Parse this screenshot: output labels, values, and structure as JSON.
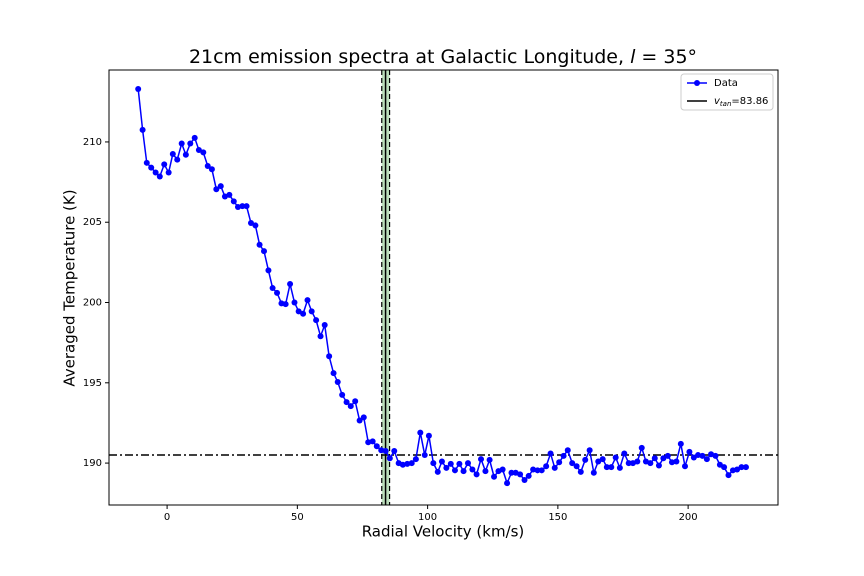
{
  "chart_data": {
    "type": "line",
    "title_prefix": "21cm emission spectra at Galactic Longitude, ",
    "title_symbol": "l",
    "title_suffix": " = 35°",
    "xlabel": "Radial Velocity (km/s)",
    "ylabel": "Averaged Temperature (K)",
    "xlim": [
      -22.3,
      234.5
    ],
    "ylim": [
      187.39,
      214.48
    ],
    "xticks": [
      0,
      50,
      100,
      150,
      200
    ],
    "yticks": [
      190,
      195,
      200,
      205,
      210
    ],
    "legend": "upper right",
    "x": [
      -11.1,
      -9.4,
      -7.8,
      -6.1,
      -4.4,
      -2.8,
      -1.1,
      0.6,
      2.2,
      3.9,
      5.6,
      7.2,
      8.9,
      10.6,
      12.2,
      13.9,
      15.6,
      17.2,
      18.9,
      20.6,
      22.2,
      23.9,
      25.6,
      27.2,
      28.9,
      30.5,
      32.2,
      33.9,
      35.5,
      37.2,
      38.9,
      40.5,
      42.2,
      43.9,
      45.5,
      47.2,
      48.9,
      50.5,
      52.2,
      53.9,
      55.5,
      57.2,
      58.9,
      60.5,
      62.2,
      63.9,
      65.5,
      67.2,
      68.9,
      70.5,
      72.2,
      73.9,
      75.5,
      77.2,
      78.9,
      80.5,
      82.2,
      83.9,
      85.5,
      87.2,
      88.9,
      90.5,
      92.2,
      93.9,
      95.5,
      97.2,
      98.9,
      100.5,
      102.2,
      103.9,
      105.5,
      107.2,
      108.9,
      110.5,
      112.2,
      113.8,
      115.5,
      117.2,
      118.8,
      120.5,
      122.2,
      123.8,
      125.5,
      127.2,
      128.8,
      130.5,
      132.2,
      133.8,
      135.5,
      137.2,
      138.8,
      140.5,
      142.2,
      143.8,
      145.5,
      147.2,
      148.8,
      150.5,
      152.2,
      153.8,
      155.5,
      157.2,
      158.8,
      160.5,
      162.2,
      163.8,
      165.5,
      167.2,
      168.8,
      170.5,
      172.2,
      173.8,
      175.5,
      177.2,
      178.8,
      180.5,
      182.2,
      183.8,
      185.5,
      187.2,
      188.8,
      190.5,
      192.2,
      193.8,
      195.5,
      197.2,
      198.8,
      200.5,
      202.2,
      203.8,
      205.5,
      207.2,
      208.8,
      210.5,
      212.2,
      213.8,
      215.5,
      217.2,
      218.8,
      220.5,
      222.2
    ],
    "series": [
      {
        "name": "Data",
        "color": "#0000ff",
        "values": [
          213.3,
          210.75,
          208.7,
          208.4,
          208.1,
          207.85,
          208.6,
          208.1,
          209.25,
          208.9,
          209.9,
          209.2,
          209.9,
          210.25,
          209.5,
          209.35,
          208.5,
          208.3,
          207.05,
          207.25,
          206.6,
          206.7,
          206.3,
          205.95,
          206.0,
          206.0,
          204.95,
          204.8,
          203.6,
          203.2,
          202.0,
          200.9,
          200.6,
          199.95,
          199.9,
          201.15,
          200.0,
          199.45,
          199.3,
          200.15,
          199.45,
          198.9,
          197.9,
          198.6,
          196.65,
          195.6,
          195.05,
          194.25,
          193.8,
          193.55,
          193.85,
          192.65,
          192.85,
          191.3,
          191.35,
          191.05,
          190.8,
          190.75,
          190.3,
          190.75,
          190.0,
          189.9,
          189.95,
          190.0,
          190.25,
          191.9,
          190.5,
          191.7,
          190.0,
          189.45,
          190.1,
          189.7,
          189.95,
          189.55,
          189.95,
          189.5,
          190.0,
          189.6,
          189.3,
          190.25,
          189.5,
          190.2,
          189.15,
          189.5,
          189.6,
          188.75,
          189.4,
          189.4,
          189.3,
          188.95,
          189.2,
          189.6,
          189.55,
          189.55,
          189.8,
          190.6,
          189.7,
          190.05,
          190.45,
          190.8,
          190.0,
          189.8,
          189.45,
          190.2,
          190.8,
          189.4,
          190.1,
          190.25,
          189.75,
          189.75,
          190.35,
          189.7,
          190.6,
          190.0,
          190.0,
          190.1,
          190.95,
          190.1,
          190.0,
          190.3,
          189.85,
          190.3,
          190.45,
          190.05,
          190.1,
          191.2,
          189.8,
          190.7,
          190.35,
          190.5,
          190.45,
          190.25,
          190.55,
          190.45,
          189.9,
          189.75,
          189.25,
          189.55,
          189.6,
          189.75,
          189.75
        ]
      }
    ],
    "hline": 190.5,
    "vline": {
      "value": 83.86,
      "color": "#000000",
      "label_symbol": "v",
      "label_subscript": "tan",
      "label_suffix": "=83.86"
    },
    "band": {
      "range": [
        82.4,
        85.4
      ],
      "color": "#90c890"
    }
  }
}
